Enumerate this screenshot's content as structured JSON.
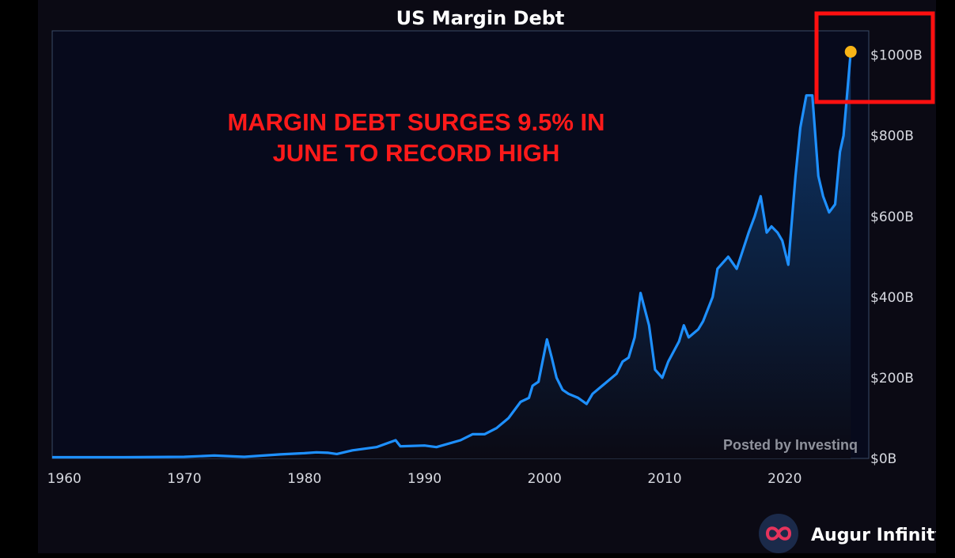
{
  "chart_data": {
    "type": "area",
    "title": "US Margin Debt",
    "annotation_lines": [
      "MARGIN DEBT SURGES 9.5% IN",
      "JUNE TO RECORD HIGH"
    ],
    "watermark": "Posted by Investinq",
    "brand": "Augur Infinity",
    "x_ticks": [
      1960,
      1970,
      1980,
      1990,
      2000,
      2010,
      2020
    ],
    "y_tick_labels": [
      "$0B",
      "$200B",
      "$400B",
      "$600B",
      "$800B",
      "$1000B"
    ],
    "y_tick_values": [
      0,
      200,
      400,
      600,
      800,
      1000
    ],
    "xlim": [
      1959,
      2027
    ],
    "ylim": [
      0,
      1060
    ],
    "y_axis_side": "right",
    "grid": false,
    "highlight_point": {
      "x": 2025.5,
      "y": 1008
    },
    "series": [
      {
        "x": [
          1959,
          1965,
          1970,
          1972.5,
          1974,
          1975,
          1978,
          1980,
          1981,
          1982,
          1982.7,
          1984,
          1986,
          1987.6,
          1988,
          1990,
          1991,
          1993,
          1994,
          1995,
          1996,
          1997,
          1998,
          1998.7,
          1999,
          1999.5,
          2000.2,
          2000.6,
          2001,
          2001.5,
          2002,
          2002.8,
          2003.5,
          2004,
          2005,
          2006,
          2006.5,
          2007,
          2007.5,
          2008,
          2008.7,
          2009.2,
          2009.8,
          2010.3,
          2011.2,
          2011.6,
          2012,
          2012.8,
          2013.2,
          2014,
          2014.4,
          2015.3,
          2016,
          2017,
          2017.5,
          2018,
          2018.5,
          2018.9,
          2019.4,
          2019.8,
          2020.3,
          2020.9,
          2021.3,
          2021.8,
          2022.3,
          2022.8,
          2023.2,
          2023.7,
          2024.2,
          2024.6,
          2024.9,
          2025.1,
          2025.5
        ],
        "y": [
          3,
          3,
          4,
          7,
          5,
          4,
          10,
          13,
          15,
          14,
          11,
          20,
          28,
          45,
          30,
          32,
          28,
          45,
          60,
          60,
          75,
          100,
          140,
          150,
          180,
          190,
          295,
          250,
          200,
          170,
          160,
          150,
          135,
          160,
          185,
          210,
          240,
          250,
          300,
          410,
          330,
          220,
          200,
          240,
          290,
          330,
          300,
          320,
          340,
          400,
          470,
          500,
          470,
          560,
          600,
          650,
          560,
          575,
          560,
          540,
          480,
          700,
          820,
          900,
          900,
          700,
          650,
          610,
          630,
          760,
          800,
          870,
          1008
        ]
      }
    ]
  }
}
